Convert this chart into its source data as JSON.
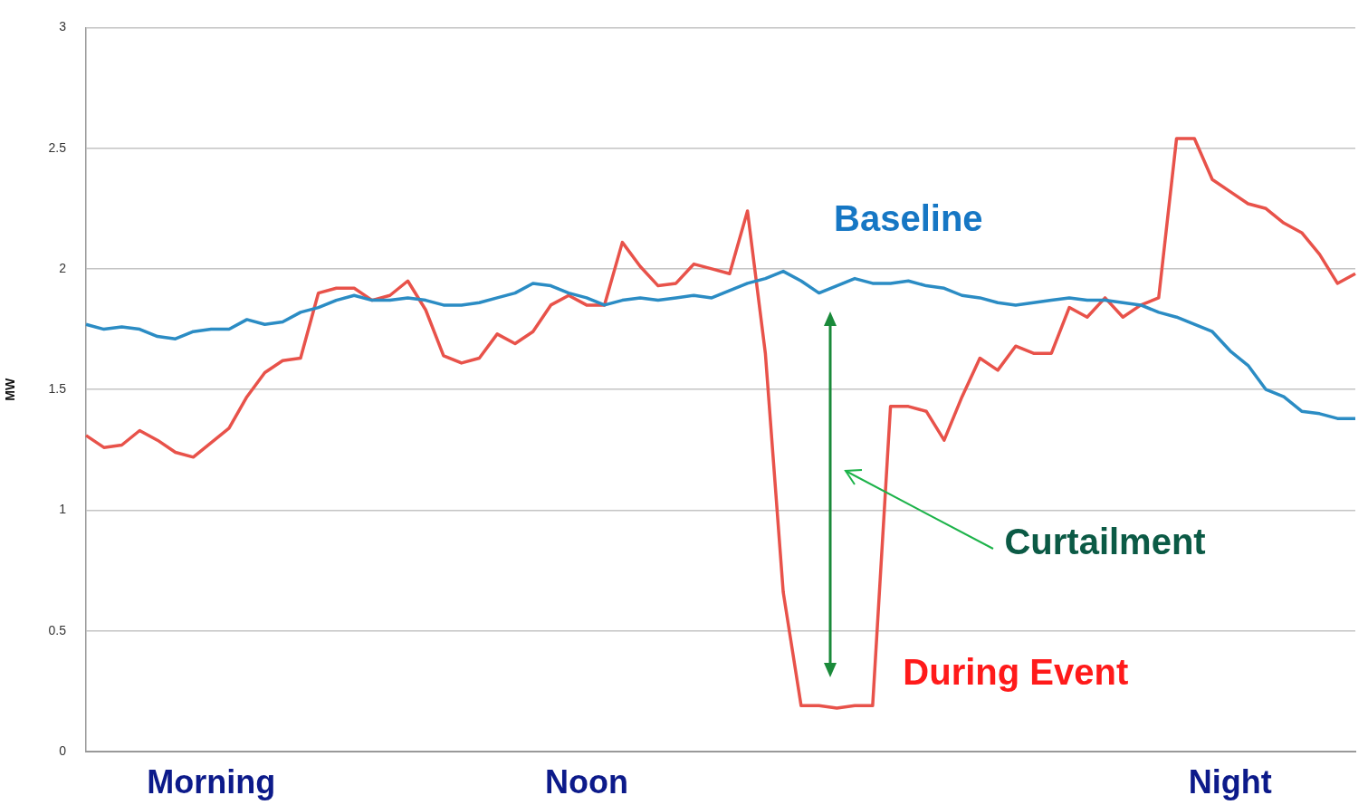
{
  "chart_data": {
    "type": "line",
    "ylabel": "MW",
    "categories": [
      null,
      null,
      null,
      null,
      null,
      null,
      null,
      "Morning",
      null,
      null,
      null,
      null,
      null,
      null,
      null,
      null,
      null,
      null,
      null,
      null,
      null,
      null,
      null,
      null,
      null,
      null,
      null,
      null,
      "Noon",
      null,
      null,
      null,
      null,
      null,
      null,
      null,
      null,
      null,
      null,
      null,
      null,
      null,
      null,
      null,
      null,
      null,
      null,
      null,
      null,
      null,
      null,
      null,
      null,
      null,
      null,
      null,
      null,
      null,
      null,
      null,
      null,
      null,
      null,
      null,
      "Night",
      null,
      null,
      null,
      null,
      null,
      null,
      null
    ],
    "series": [
      {
        "name": "Baseline",
        "color": "#2b8cc4",
        "values": [
          1.77,
          1.75,
          1.76,
          1.75,
          1.72,
          1.71,
          1.74,
          1.75,
          1.75,
          1.79,
          1.77,
          1.78,
          1.82,
          1.84,
          1.87,
          1.89,
          1.87,
          1.87,
          1.88,
          1.87,
          1.85,
          1.85,
          1.86,
          1.88,
          1.9,
          1.94,
          1.93,
          1.9,
          1.88,
          1.85,
          1.87,
          1.88,
          1.87,
          1.88,
          1.89,
          1.88,
          1.91,
          1.94,
          1.96,
          1.99,
          1.95,
          1.9,
          1.93,
          1.96,
          1.94,
          1.94,
          1.95,
          1.93,
          1.92,
          1.89,
          1.88,
          1.86,
          1.85,
          1.86,
          1.87,
          1.88,
          1.87,
          1.87,
          1.86,
          1.85,
          1.82,
          1.8,
          1.77,
          1.74,
          1.66,
          1.6,
          1.5,
          1.47,
          1.41,
          1.4,
          1.38,
          1.38
        ]
      },
      {
        "name": "During Event",
        "color": "#e8524a",
        "values": [
          1.31,
          1.26,
          1.27,
          1.33,
          1.29,
          1.24,
          1.22,
          1.28,
          1.34,
          1.47,
          1.57,
          1.62,
          1.63,
          1.9,
          1.92,
          1.92,
          1.87,
          1.89,
          1.95,
          1.83,
          1.64,
          1.61,
          1.63,
          1.73,
          1.69,
          1.74,
          1.85,
          1.89,
          1.85,
          1.85,
          2.11,
          2.01,
          1.93,
          1.94,
          2.02,
          2.0,
          1.98,
          2.24,
          1.65,
          0.66,
          0.19,
          0.19,
          0.18,
          0.19,
          0.19,
          1.43,
          1.43,
          1.41,
          1.29,
          1.47,
          1.63,
          1.58,
          1.68,
          1.65,
          1.65,
          1.84,
          1.8,
          1.88,
          1.8,
          1.85,
          1.88,
          2.54,
          2.54,
          2.37,
          2.32,
          2.27,
          2.25,
          2.19,
          2.15,
          2.06,
          1.94,
          1.98
        ]
      }
    ],
    "ylim": [
      0,
      3
    ],
    "yticks": [
      0,
      0.5,
      1,
      1.5,
      2,
      2.5,
      3
    ],
    "grid": "y",
    "legend": false,
    "marker": "none",
    "line_style": "solid",
    "annotations": [
      "Curtailment"
    ]
  }
}
